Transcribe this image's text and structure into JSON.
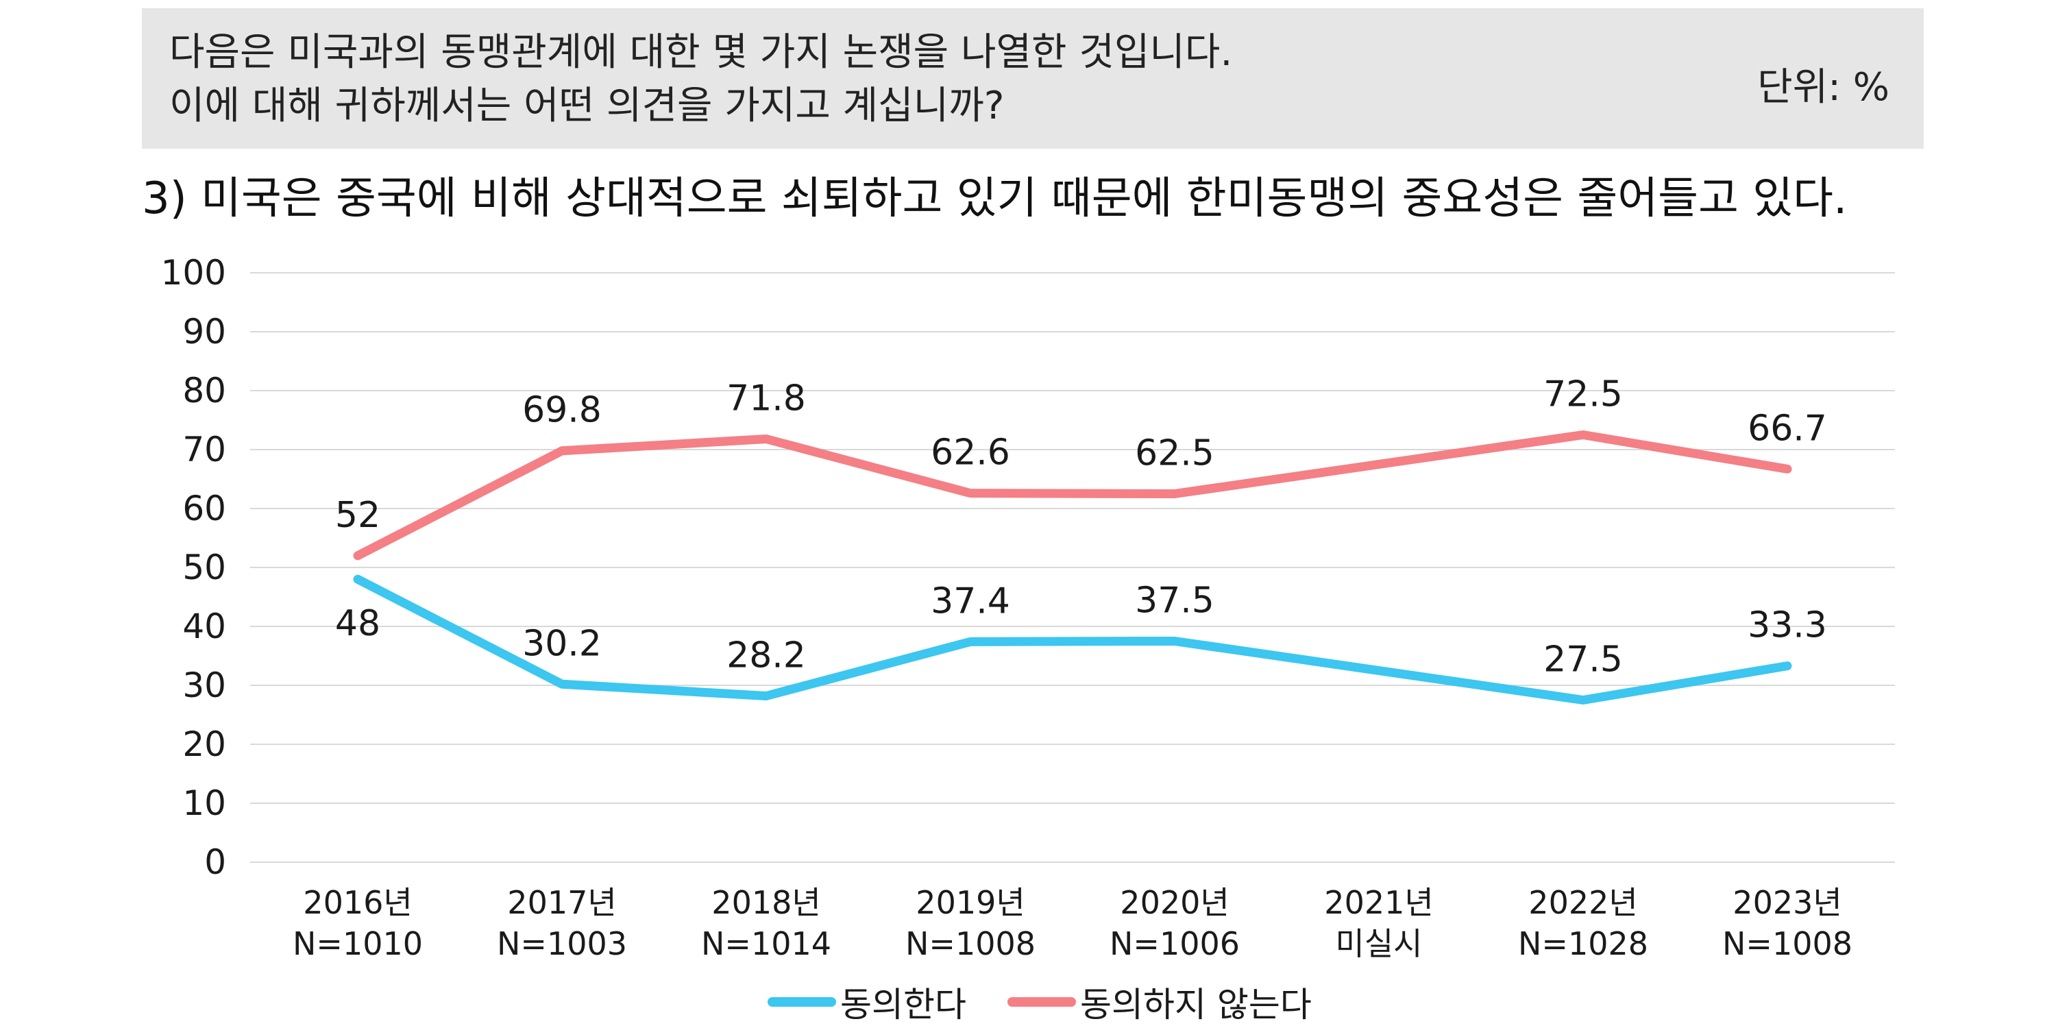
{
  "header": {
    "question_line1": "다음은 미국과의 동맹관계에 대한 몇 가지 논쟁을 나열한 것입니다.",
    "question_line2": "이에 대해 귀하께서는 어떤 의견을 가지고 계십니까?",
    "unit": "단위: %"
  },
  "subtitle": "3) 미국은 중국에 비해 상대적으로 쇠퇴하고 있기 때문에 한미동맹의 중요성은 줄어들고 있다.",
  "chart_data": {
    "type": "line",
    "categories": [
      "2016년",
      "2017년",
      "2018년",
      "2019년",
      "2020년",
      "2021년",
      "2022년",
      "2023년"
    ],
    "category_sublabels": [
      "N=1010",
      "N=1003",
      "N=1014",
      "N=1008",
      "N=1006",
      "미실시",
      "N=1028",
      "N=1008"
    ],
    "ylim": [
      0,
      100
    ],
    "yticks": [
      0,
      10,
      20,
      30,
      40,
      50,
      60,
      70,
      80,
      90,
      100
    ],
    "grid": true,
    "legend_position": "bottom",
    "series": [
      {
        "name": "동의한다",
        "color": "#3cc6f0",
        "values": [
          48,
          30.2,
          28.2,
          37.4,
          37.5,
          null,
          27.5,
          33.3
        ],
        "labels": [
          "48",
          "30.2",
          "28.2",
          "37.4",
          "37.5",
          "",
          "27.5",
          "33.3"
        ]
      },
      {
        "name": "동의하지 않는다",
        "color": "#f47f85",
        "values": [
          52,
          69.8,
          71.8,
          62.6,
          62.5,
          null,
          72.5,
          66.7
        ],
        "labels": [
          "52",
          "69.8",
          "71.8",
          "62.6",
          "62.5",
          "",
          "72.5",
          "66.7"
        ]
      }
    ]
  }
}
